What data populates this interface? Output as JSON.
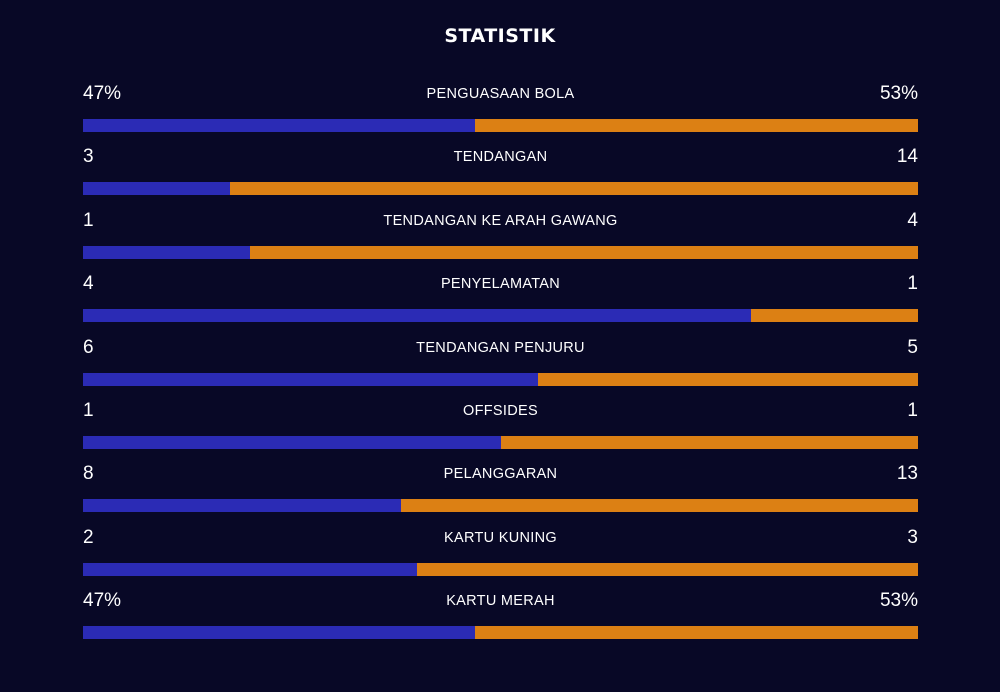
{
  "title": "STATISTIK",
  "colors": {
    "background": "#080826",
    "home": "#2b2bb5",
    "away": "#dc8014",
    "text": "#ffffff"
  },
  "stats": [
    {
      "label": "PENGUASAAN BOLA",
      "home": "47%",
      "away": "53%",
      "home_share": 0.47
    },
    {
      "label": "TENDANGAN",
      "home": "3",
      "away": "14",
      "home_share": 0.176
    },
    {
      "label": "TENDANGAN KE ARAH GAWANG",
      "home": "1",
      "away": "4",
      "home_share": 0.2
    },
    {
      "label": "PENYELAMATAN",
      "home": "4",
      "away": "1",
      "home_share": 0.8
    },
    {
      "label": "TENDANGAN PENJURU",
      "home": "6",
      "away": "5",
      "home_share": 0.545
    },
    {
      "label": "OFFSIDES",
      "home": "1",
      "away": "1",
      "home_share": 0.5
    },
    {
      "label": "PELANGGARAN",
      "home": "8",
      "away": "13",
      "home_share": 0.381
    },
    {
      "label": "KARTU KUNING",
      "home": "2",
      "away": "3",
      "home_share": 0.4
    },
    {
      "label": "KARTU MERAH",
      "home": "47%",
      "away": "53%",
      "home_share": 0.47
    }
  ]
}
